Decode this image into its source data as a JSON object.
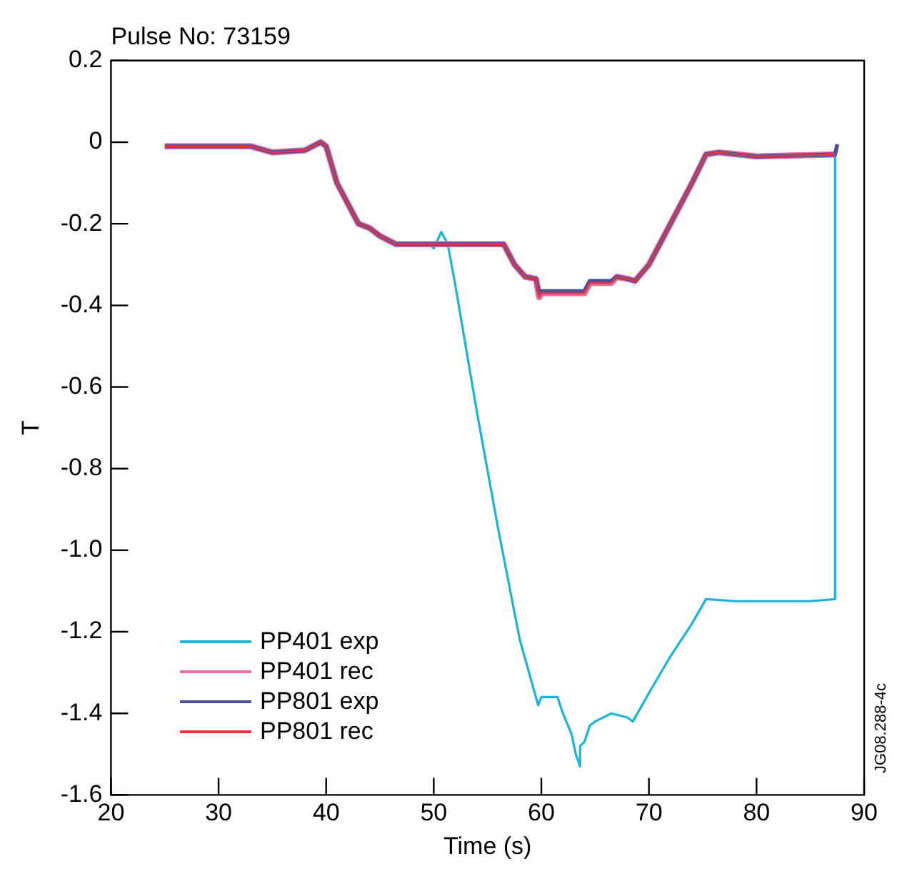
{
  "chart_data": {
    "type": "line",
    "title": "Pulse No: 73159",
    "xlabel": "Time (s)",
    "ylabel": "T",
    "annotations": [
      "JG08.288-4c"
    ],
    "xlim": [
      20,
      90
    ],
    "xticks": [
      20,
      30,
      40,
      50,
      60,
      70,
      80,
      90
    ],
    "ylim": [
      -1.6,
      0.2
    ],
    "yticks": [
      0.2,
      0,
      -0.2,
      -0.4,
      -0.6,
      -0.8,
      {
        "value": -1,
        "label": "-1.0"
      },
      -1.2,
      -1.4,
      -1.6
    ],
    "grid": false,
    "legend": "bottom left",
    "marker": "none",
    "line_style": "solid",
    "series": [
      {
        "name": "PP401 exp",
        "color": "#1ab4d6",
        "x": [
          49.5,
          50,
          50.7,
          51.3,
          52,
          54,
          56,
          58,
          59.7,
          60,
          61.5,
          62,
          62.8,
          63.2,
          63.6,
          63.6,
          64,
          64.5,
          65,
          66.5,
          68,
          68.5,
          70,
          72,
          74,
          75.3,
          78,
          85,
          87.3,
          87.3
        ],
        "values": [
          -0.25,
          -0.26,
          -0.22,
          -0.25,
          -0.35,
          -0.66,
          -0.95,
          -1.22,
          -1.38,
          -1.36,
          -1.36,
          -1.4,
          -1.45,
          -1.5,
          -1.53,
          -1.48,
          -1.47,
          -1.43,
          -1.42,
          -1.4,
          -1.41,
          -1.42,
          -1.35,
          -1.26,
          -1.18,
          -1.12,
          -1.125,
          -1.125,
          -1.12,
          -0.03
        ]
      },
      {
        "name": "PP401 rec",
        "color": "#e56fa0",
        "x": [
          25,
          33,
          35,
          38,
          39.5,
          40,
          41,
          42,
          43,
          44,
          45,
          46.5,
          56.5,
          57.5,
          58.5,
          59.5,
          59.8,
          60,
          64,
          64.5,
          66.5,
          67,
          68,
          68.7,
          70,
          72,
          74,
          75.3,
          76.5,
          80,
          87.3
        ],
        "values": [
          -0.01,
          -0.01,
          -0.025,
          -0.02,
          0,
          -0.01,
          -0.1,
          -0.15,
          -0.2,
          -0.21,
          -0.23,
          -0.25,
          -0.25,
          -0.3,
          -0.33,
          -0.335,
          -0.38,
          -0.37,
          -0.37,
          -0.345,
          -0.345,
          -0.33,
          -0.335,
          -0.34,
          -0.3,
          -0.2,
          -0.1,
          -0.03,
          -0.025,
          -0.035,
          -0.03
        ]
      },
      {
        "name": "PP801 exp",
        "color": "#4a4fa0",
        "x": [
          25,
          33,
          35,
          38,
          39.5,
          40,
          41,
          42,
          43,
          44,
          45,
          46.5,
          56.5,
          57.5,
          58.5,
          59.5,
          59.8,
          60,
          64,
          64.5,
          66.5,
          67,
          68,
          68.7,
          70,
          72,
          74,
          75.3,
          76.5,
          80,
          87.3,
          87.5
        ],
        "values": [
          -0.01,
          -0.01,
          -0.025,
          -0.02,
          0,
          -0.01,
          -0.1,
          -0.15,
          -0.2,
          -0.21,
          -0.23,
          -0.25,
          -0.25,
          -0.3,
          -0.33,
          -0.335,
          -0.37,
          -0.365,
          -0.365,
          -0.34,
          -0.34,
          -0.33,
          -0.335,
          -0.34,
          -0.3,
          -0.2,
          -0.1,
          -0.03,
          -0.025,
          -0.035,
          -0.03,
          -0.005
        ]
      },
      {
        "name": "PP801 rec",
        "color": "#e8383d",
        "x": [
          25,
          33,
          35,
          38,
          39.5,
          40,
          41,
          42,
          43,
          44,
          45,
          46.5,
          56.5,
          57.5,
          58.5,
          59.5,
          59.8,
          60,
          64,
          64.5,
          66.5,
          67,
          68,
          68.7,
          70,
          72,
          74,
          75.3,
          76.5,
          80,
          87.3
        ],
        "values": [
          -0.01,
          -0.01,
          -0.025,
          -0.02,
          0,
          -0.01,
          -0.1,
          -0.15,
          -0.2,
          -0.21,
          -0.23,
          -0.25,
          -0.25,
          -0.3,
          -0.33,
          -0.335,
          -0.38,
          -0.37,
          -0.37,
          -0.345,
          -0.345,
          -0.33,
          -0.335,
          -0.34,
          -0.3,
          -0.2,
          -0.1,
          -0.03,
          -0.025,
          -0.035,
          -0.03
        ]
      }
    ]
  }
}
